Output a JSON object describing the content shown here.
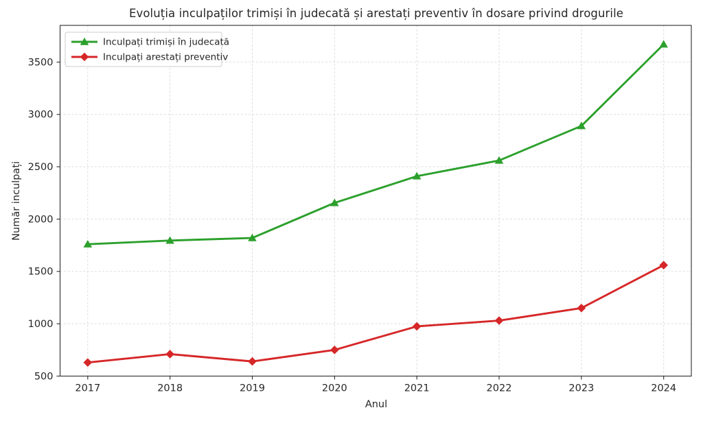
{
  "chart_data": {
    "type": "line",
    "title": "Evoluția inculpaților trimiși în judecată și arestați preventiv în dosare privind drogurile",
    "xlabel": "Anul",
    "ylabel": "Număr inculpați",
    "x": [
      2017,
      2018,
      2019,
      2020,
      2021,
      2022,
      2023,
      2024
    ],
    "series": [
      {
        "name": "Inculpați trimiși în judecată",
        "color": "#2ca02c",
        "marker": "triangle-up",
        "values": [
          1760,
          1795,
          1820,
          2155,
          2410,
          2560,
          2890,
          3670
        ]
      },
      {
        "name": "Inculpați arestați preventiv",
        "color": "#d62728",
        "marker": "diamond",
        "values": [
          630,
          710,
          640,
          750,
          975,
          1030,
          1150,
          1560
        ]
      }
    ],
    "yticks": [
      500,
      1000,
      1500,
      2000,
      2500,
      3000,
      3500
    ],
    "ylim": [
      500,
      3851
    ],
    "grid": true,
    "grid_style": "dashed",
    "legend_position": "upper-left",
    "background_color": "#ffffff",
    "spine_color": "#2b2b2b",
    "grid_color": "#cccccc",
    "tick_label_color": "#262626"
  }
}
